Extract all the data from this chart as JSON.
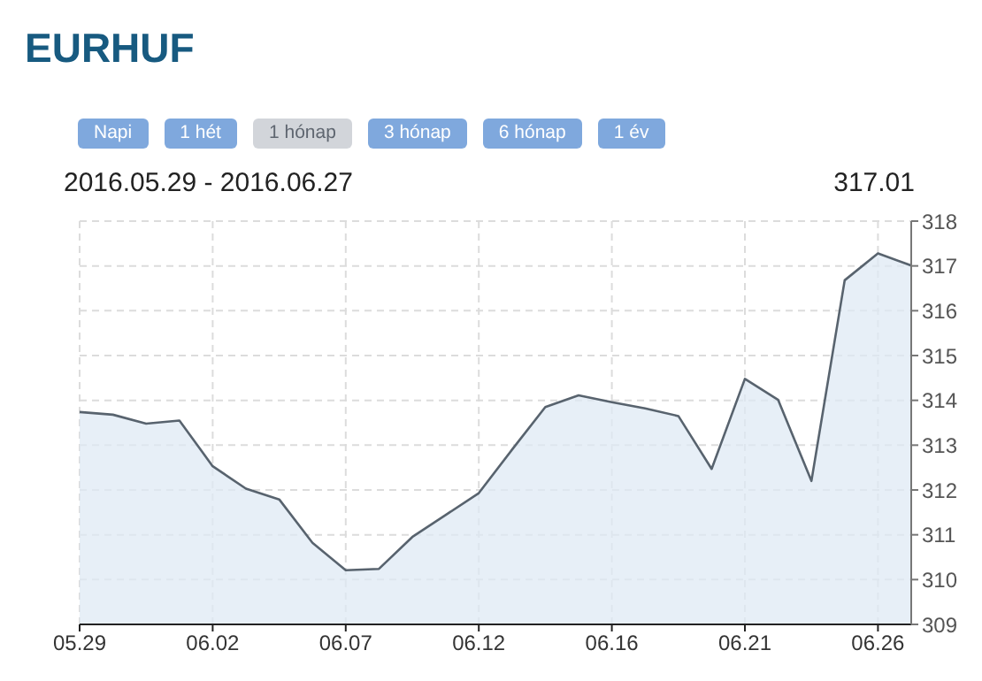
{
  "chart_data": {
    "type": "area",
    "title": "EURHUF",
    "subtitle": "2016.05.29 - 2016.06.27",
    "annotations": [
      "Napi",
      "1 hét",
      "1 hónap",
      "3 hónap",
      "6 hónap",
      "1 év",
      "317.01"
    ],
    "categories": [
      "05.29",
      null,
      null,
      null,
      "06.02",
      null,
      null,
      null,
      "06.07",
      null,
      null,
      null,
      "06.12",
      null,
      null,
      null,
      "06.16",
      null,
      null,
      null,
      "06.21",
      null,
      null,
      null,
      "06.26",
      null
    ],
    "series": [
      {
        "color": "#58636e",
        "values": [
          313.74,
          313.68,
          313.48,
          313.55,
          312.53,
          312.03,
          311.79,
          310.82,
          310.21,
          310.24,
          310.95,
          311.44,
          311.93,
          312.9,
          313.85,
          314.11,
          313.96,
          313.82,
          313.65,
          312.47,
          314.48,
          314.01,
          312.2,
          316.68,
          317.28,
          317.01
        ]
      }
    ],
    "ylim": [
      309,
      318
    ],
    "yticks": [
      309,
      310,
      311,
      312,
      313,
      314,
      315,
      316,
      317,
      318
    ],
    "grid": true,
    "marker": "none",
    "line_style": "solid"
  }
}
